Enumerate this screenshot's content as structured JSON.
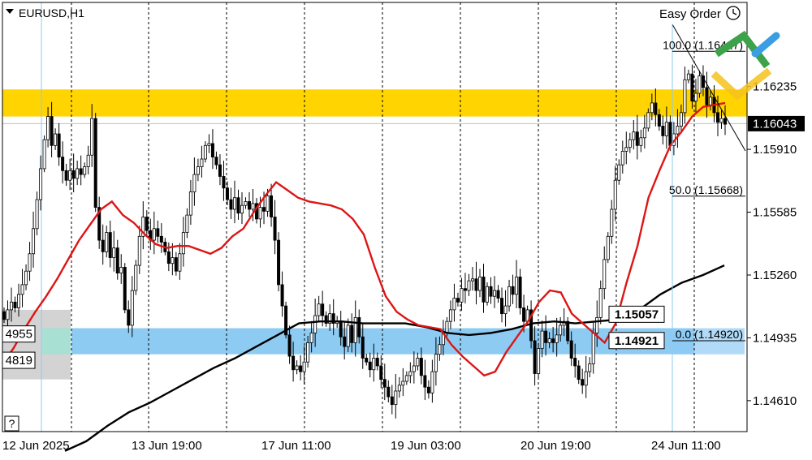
{
  "symbol_label": "EURUSD,H1",
  "easy_order_label": "Easy Order",
  "help_button_label": "?",
  "logo_icon": "green-yellow-blue-lines-logo",
  "colors": {
    "resistance_zone": "#ffd400",
    "support_zone": "#8ecbf3",
    "grid": "#000000",
    "ma_fast": "#dd1515",
    "ma_slow": "#000000",
    "candle": "#000000",
    "current_price_bg": "#000000",
    "left_box": "#d3d3d3",
    "left_box_overlap": "#a8e0d3"
  },
  "chart_data": {
    "type": "candlestick",
    "symbol": "EURUSD",
    "timeframe": "H1",
    "ylim": [
      1.1445,
      1.1667
    ],
    "y_ticks": [
      1.1461,
      1.14935,
      1.1526,
      1.15585,
      1.1591,
      1.16235
    ],
    "y_tick_labels": [
      "1.14610",
      "1.14935",
      "1.15260",
      "1.15585",
      "1.15910",
      "1.16235"
    ],
    "x_tick_labels": [
      "12 Jun 2025",
      "13 Jun 19:00",
      "17 Jun 11:00",
      "19 Jun 03:00",
      "20 Jun 19:00",
      "24 Jun 11:00"
    ],
    "current_price": 1.16043,
    "current_price_label": "1.16043",
    "zones": [
      {
        "name": "resistance",
        "from": 1.1608,
        "to": 1.1622
      },
      {
        "name": "support",
        "from": 1.1485,
        "to": 1.14985
      }
    ],
    "level_labels": [
      {
        "label": "1.15057",
        "value": 1.15057
      },
      {
        "label": "1.14921",
        "value": 1.14921
      }
    ],
    "left_labels": [
      {
        "label": "4955",
        "value": 1.14955
      },
      {
        "label": "4819",
        "value": 1.14819
      }
    ],
    "fibonacci": [
      {
        "label": "100.0 (1.16417)",
        "value": 1.16417
      },
      {
        "label": "50.0 (1.15668)",
        "value": 1.15668
      },
      {
        "label": "0.0 (1.14920)",
        "value": 1.1492
      }
    ],
    "closes": [
      1.1503,
      1.1508,
      1.1512,
      1.1509,
      1.1516,
      1.1521,
      1.1528,
      1.1537,
      1.155,
      1.1565,
      1.1581,
      1.1596,
      1.1608,
      1.1593,
      1.1599,
      1.1587,
      1.158,
      1.1575,
      1.158,
      1.1576,
      1.1581,
      1.1578,
      1.1582,
      1.1588,
      1.1607,
      1.1561,
      1.1544,
      1.1538,
      1.1548,
      1.1535,
      1.154,
      1.1527,
      1.153,
      1.1508,
      1.15,
      1.1518,
      1.1531,
      1.1546,
      1.1556,
      1.1549,
      1.1544,
      1.155,
      1.1546,
      1.1543,
      1.1538,
      1.1532,
      1.1535,
      1.1528,
      1.1537,
      1.1548,
      1.1557,
      1.1569,
      1.1578,
      1.1582,
      1.1586,
      1.1593,
      1.1594,
      1.1587,
      1.1583,
      1.1577,
      1.1571,
      1.1565,
      1.156,
      1.1566,
      1.1558,
      1.1562,
      1.1564,
      1.156,
      1.1563,
      1.1555,
      1.1561,
      1.1559,
      1.1567,
      1.1556,
      1.1544,
      1.1521,
      1.151,
      1.1495,
      1.1484,
      1.1477,
      1.1479,
      1.1476,
      1.1481,
      1.1491,
      1.1496,
      1.1505,
      1.1511,
      1.1505,
      1.1501,
      1.1506,
      1.1501,
      1.1502,
      1.1494,
      1.1489,
      1.15,
      1.1491,
      1.1504,
      1.1494,
      1.1483,
      1.1481,
      1.1477,
      1.1483,
      1.1479,
      1.1472,
      1.1468,
      1.1463,
      1.1459,
      1.1466,
      1.1469,
      1.1471,
      1.1474,
      1.1476,
      1.1479,
      1.1483,
      1.1474,
      1.1468,
      1.1465,
      1.1476,
      1.1485,
      1.149,
      1.1496,
      1.1502,
      1.1508,
      1.1514,
      1.1512,
      1.1519,
      1.1518,
      1.1523,
      1.1524,
      1.1518,
      1.1525,
      1.1512,
      1.152,
      1.1515,
      1.1518,
      1.1514,
      1.1506,
      1.151,
      1.152,
      1.1516,
      1.1525,
      1.1509,
      1.1502,
      1.1508,
      1.1492,
      1.1475,
      1.1488,
      1.1497,
      1.1491,
      1.1493,
      1.1491,
      1.1495,
      1.15,
      1.1502,
      1.1492,
      1.1483,
      1.1479,
      1.1472,
      1.1469,
      1.1476,
      1.148,
      1.1496,
      1.1504,
      1.1519,
      1.1534,
      1.1546,
      1.156,
      1.1575,
      1.1583,
      1.159,
      1.1592,
      1.1596,
      1.16,
      1.1593,
      1.1597,
      1.1602,
      1.161,
      1.1615,
      1.1609,
      1.1603,
      1.1598,
      1.1605,
      1.1593,
      1.1599,
      1.1603,
      1.161,
      1.1627,
      1.163,
      1.1616,
      1.162,
      1.1629,
      1.1623,
      1.1614,
      1.1618,
      1.161,
      1.1605,
      1.1607,
      1.1604
    ],
    "series": [
      {
        "name": "",
        "color": "#dd1515",
        "values": [
          1.148,
          1.1488,
          1.1498,
          1.1507,
          1.1515,
          1.1524,
          1.1534,
          1.1544,
          1.1552,
          1.156,
          1.1564,
          1.1557,
          1.1553,
          1.1547,
          1.1542,
          1.154,
          1.1541,
          1.1541,
          1.1539,
          1.1537,
          1.154,
          1.1546,
          1.155,
          1.1559,
          1.1567,
          1.1574,
          1.157,
          1.1566,
          1.1564,
          1.1563,
          1.1562,
          1.156,
          1.1555,
          1.1547,
          1.153,
          1.1515,
          1.1507,
          1.1503,
          1.15,
          1.1499,
          1.1498,
          1.149,
          1.1484,
          1.1479,
          1.1474,
          1.1476,
          1.1486,
          1.1494,
          1.1502,
          1.1512,
          1.1518,
          1.1517,
          1.1506,
          1.1501,
          1.1496,
          1.1491,
          1.1501,
          1.1522,
          1.1541,
          1.1566,
          1.158,
          1.1593,
          1.16,
          1.1608,
          1.1613,
          1.1614,
          1.1615
        ]
      },
      {
        "name": "",
        "color": "#000000",
        "values": [
          1.1435,
          1.144,
          1.1448,
          1.1455,
          1.146,
          1.1466,
          1.1472,
          1.1478,
          1.1483,
          1.1489,
          1.1495,
          1.1501,
          1.1502,
          1.1502,
          1.1501,
          1.1501,
          1.1501,
          1.1499,
          1.1496,
          1.1495,
          1.1496,
          1.1498,
          1.1501,
          1.1502,
          1.1501,
          1.1502,
          1.1503,
          1.1508,
          1.1516,
          1.1522,
          1.1526,
          1.1531
        ]
      }
    ]
  }
}
